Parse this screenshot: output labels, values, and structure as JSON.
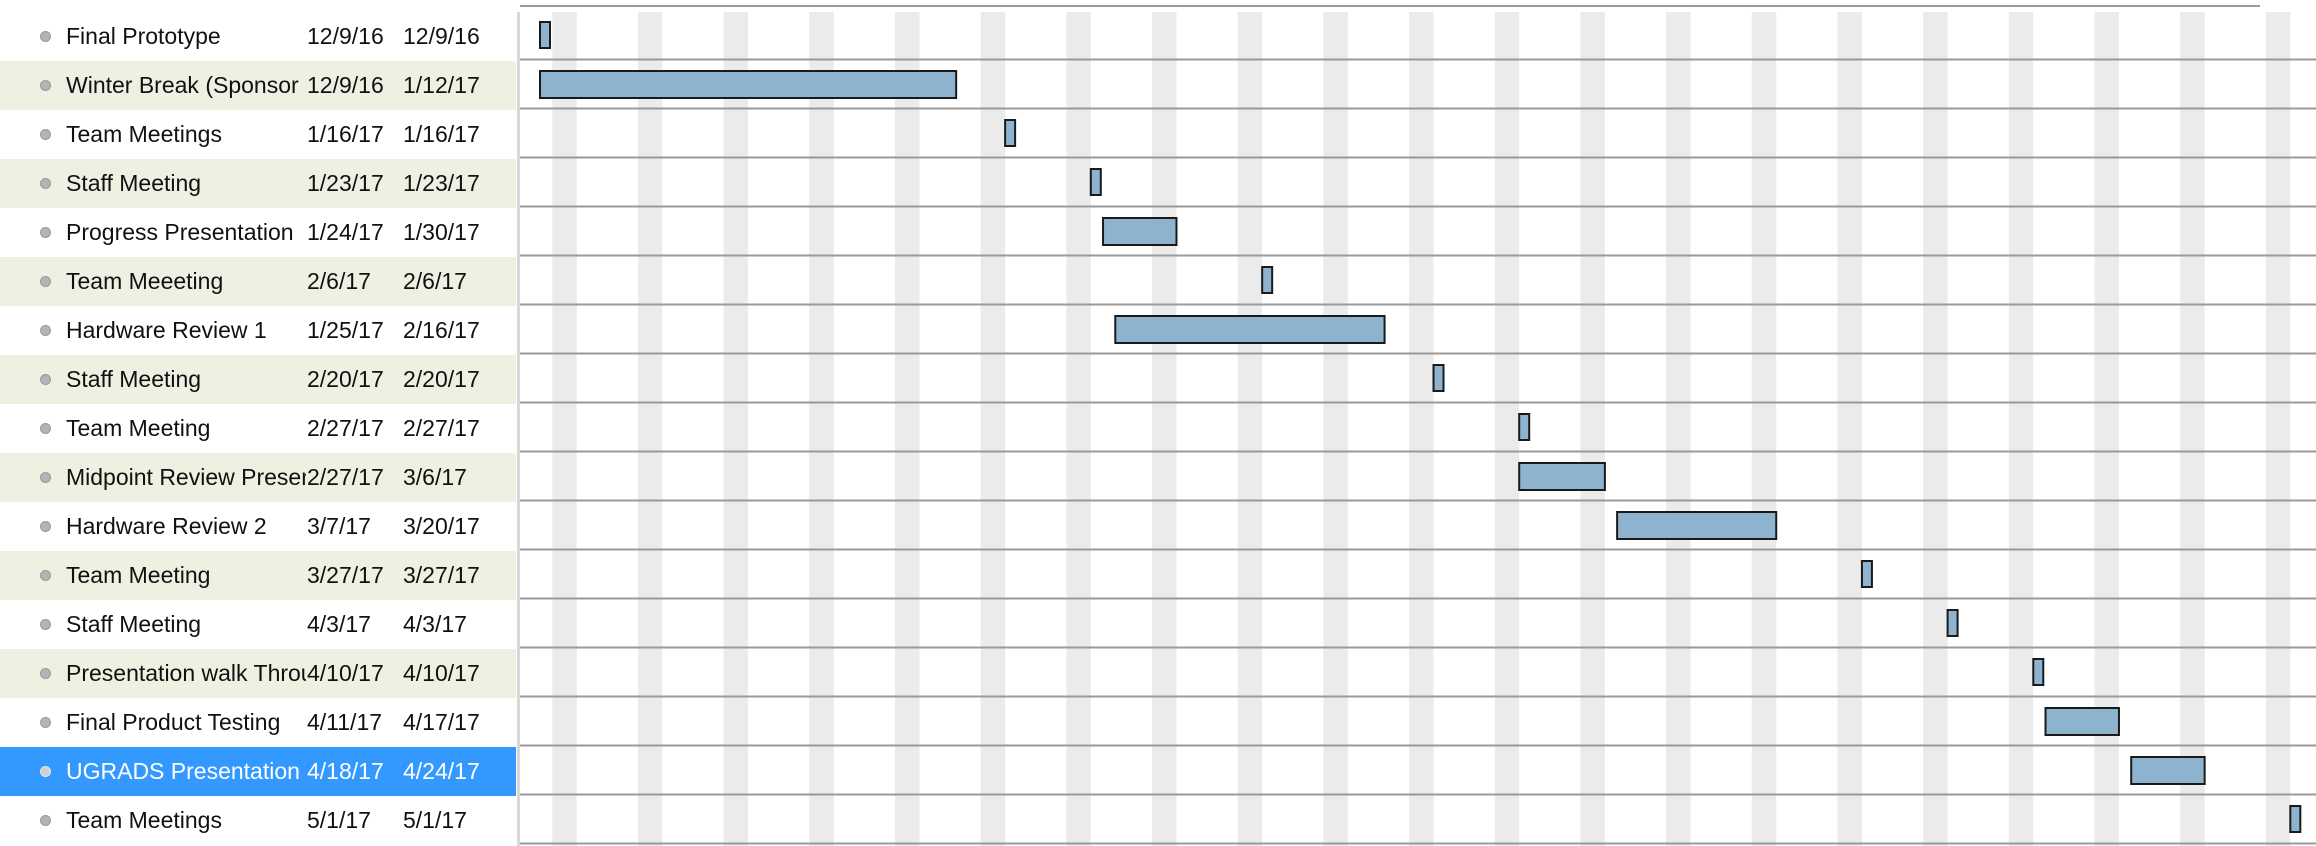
{
  "tasks": [
    {
      "name": "Final Prototype",
      "start": "12/9/16",
      "finish": "12/9/16"
    },
    {
      "name": "Winter Break (Sponsor + Up...",
      "start": "12/9/16",
      "finish": "1/12/17"
    },
    {
      "name": "Team Meetings",
      "start": "1/16/17",
      "finish": "1/16/17"
    },
    {
      "name": "Staff Meeting",
      "start": "1/23/17",
      "finish": "1/23/17"
    },
    {
      "name": "Progress Presentation",
      "start": "1/24/17",
      "finish": "1/30/17"
    },
    {
      "name": "Team Meeeting",
      "start": "2/6/17",
      "finish": "2/6/17"
    },
    {
      "name": "Hardware Review 1",
      "start": "1/25/17",
      "finish": "2/16/17"
    },
    {
      "name": "Staff Meeting",
      "start": "2/20/17",
      "finish": "2/20/17"
    },
    {
      "name": "Team Meeting",
      "start": "2/27/17",
      "finish": "2/27/17"
    },
    {
      "name": "Midpoint Review Presentation",
      "start": "2/27/17",
      "finish": "3/6/17"
    },
    {
      "name": "Hardware Review 2",
      "start": "3/7/17",
      "finish": "3/20/17"
    },
    {
      "name": "Team Meeting",
      "start": "3/27/17",
      "finish": "3/27/17"
    },
    {
      "name": "Staff Meeting",
      "start": "4/3/17",
      "finish": "4/3/17"
    },
    {
      "name": "Presentation walk Throughs",
      "start": "4/10/17",
      "finish": "4/10/17"
    },
    {
      "name": "Final Product Testing",
      "start": "4/11/17",
      "finish": "4/17/17"
    },
    {
      "name": "UGRADS Presentation",
      "start": "4/18/17",
      "finish": "4/24/17"
    },
    {
      "name": "Team Meetings",
      "start": "5/1/17",
      "finish": "5/1/17"
    }
  ],
  "selected_task": 15,
  "colors": {
    "bar_fill": "#8db3cf",
    "bar_border": "#1a1a1a",
    "weekend_band": "#ebebeb",
    "row_line": "#9a9a9a",
    "alt_row": "#efefe2",
    "selection": "#3399ff"
  }
}
